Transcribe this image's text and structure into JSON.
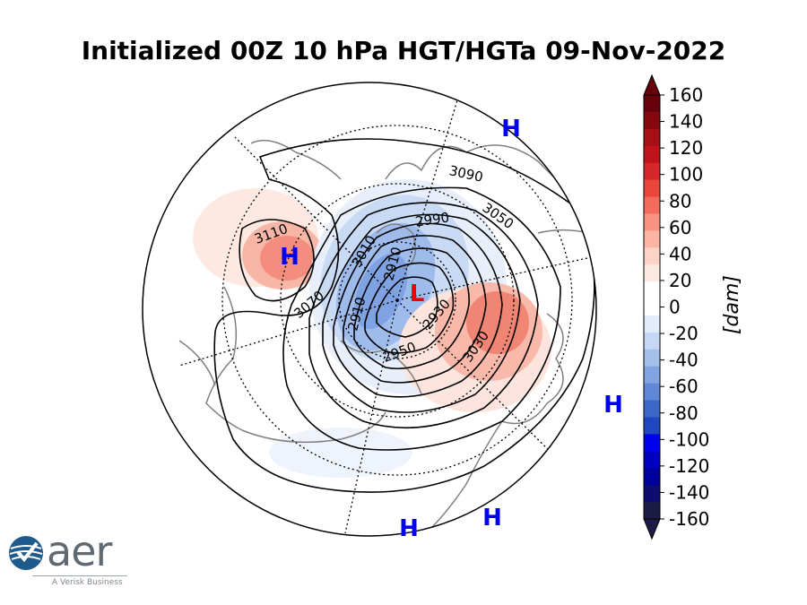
{
  "title": "Initialized 00Z 10 hPa HGT/HGTa 09-Nov-2022",
  "chart_data": {
    "type": "heatmap",
    "projection": "north polar stereographic",
    "variable": "10 hPa geopotential height (contours) and height anomaly (shading)",
    "contour_labels": [
      "3090",
      "3050",
      "2990",
      "3010",
      "2910",
      "2910",
      "2930",
      "2950",
      "3030",
      "3070",
      "3110"
    ],
    "centers": [
      {
        "label": "H",
        "color": "#0000ee"
      },
      {
        "label": "H",
        "color": "#0000ee"
      },
      {
        "label": "H",
        "color": "#0000ee"
      },
      {
        "label": "H",
        "color": "#0000ee"
      },
      {
        "label": "H",
        "color": "#0000ee"
      },
      {
        "label": "L",
        "color": "#ee0000"
      }
    ],
    "colorbar": {
      "unit_label": "[dam]",
      "ticks": [
        "160",
        "140",
        "120",
        "100",
        "80",
        "60",
        "40",
        "20",
        "0",
        "-20",
        "-40",
        "-60",
        "-80",
        "-100",
        "-120",
        "-140",
        "-160"
      ],
      "range": [
        -160,
        160
      ],
      "colors_top_to_bottom": [
        "#67000d",
        "#86080f",
        "#a50f15",
        "#bf141c",
        "#d8272a",
        "#e9473a",
        "#f36b5a",
        "#f8947f",
        "#fbb5a2",
        "#fdd3c5",
        "#fde9e1",
        "#ffffff",
        "#ffffff",
        "#e3ecfb",
        "#c6d7f3",
        "#a4bfeb",
        "#82a5e2",
        "#5f88d6",
        "#3b67c9",
        "#1f48c0",
        "#0000ee",
        "#0000c4",
        "#00009c",
        "#0d0d70",
        "#1b1b45"
      ]
    }
  },
  "logo": {
    "word": "aer",
    "subtitle": "A Verisk Business"
  }
}
